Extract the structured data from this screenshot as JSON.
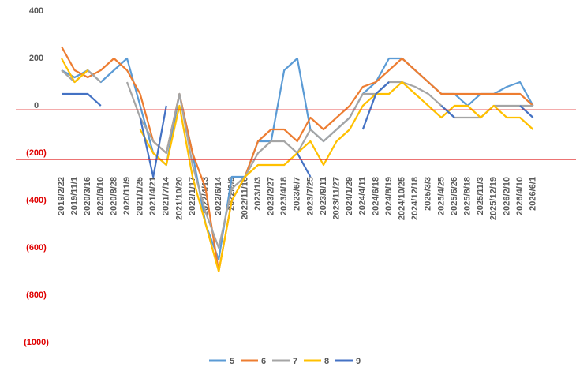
{
  "chart_data": {
    "type": "line",
    "categories": [
      "2019/2/22",
      "2019/11/1",
      "2020/3/16",
      "2020/6/10",
      "2020/8/28",
      "2020/11/9",
      "2021/1/25",
      "2021/4/21",
      "2021/7/14",
      "2021/10/20",
      "2022/1/17",
      "2022/4/13",
      "2022/6/14",
      "2022/9/9",
      "2022/11/16",
      "2023/1/3",
      "2023/2/27",
      "2023/4/18",
      "2023/6/7",
      "2023/7/25",
      "2023/9/11",
      "2023/11/27",
      "2024/1/29",
      "2024/4/11",
      "2024/6/18",
      "2024/8/19",
      "2024/10/25",
      "2024/12/18",
      "2025/3/3",
      "2025/4/25",
      "2025/6/26",
      "2025/8/18",
      "2025/11/3",
      "2025/12/19",
      "2026/2/10",
      "2026/4/10",
      "2026/6/1"
    ],
    "series": [
      {
        "name": "5",
        "color": "#5b9bd5",
        "values": [
          150,
          120,
          150,
          100,
          150,
          200,
          0,
          -200,
          -250,
          50,
          -200,
          -500,
          -650,
          -300,
          -300,
          -150,
          -150,
          150,
          200,
          -100,
          -150,
          -100,
          -50,
          50,
          100,
          200,
          200,
          150,
          100,
          50,
          50,
          0,
          50,
          50,
          80,
          100,
          0
        ]
      },
      {
        "name": "6",
        "color": "#ed7d31",
        "values": [
          250,
          150,
          120,
          150,
          200,
          150,
          50,
          -150,
          -200,
          50,
          -200,
          -350,
          -700,
          -400,
          -300,
          -150,
          -100,
          -100,
          -150,
          -50,
          -100,
          -50,
          0,
          80,
          100,
          150,
          200,
          150,
          100,
          50,
          50,
          50,
          50,
          50,
          50,
          50,
          0
        ]
      },
      {
        "name": "7",
        "color": "#a5a5a5",
        "values": [
          150,
          100,
          150,
          100,
          null,
          100,
          -50,
          -150,
          -200,
          50,
          -250,
          -450,
          -600,
          -350,
          -300,
          -200,
          -150,
          -150,
          -200,
          -100,
          -150,
          -100,
          -50,
          50,
          50,
          100,
          100,
          80,
          50,
          0,
          -50,
          -50,
          -50,
          0,
          0,
          0,
          0
        ]
      },
      {
        "name": "8",
        "color": "#ffc000",
        "values": [
          200,
          100,
          150,
          null,
          null,
          null,
          -100,
          -200,
          -250,
          0,
          -300,
          -500,
          -700,
          -400,
          -300,
          -250,
          -250,
          -250,
          -200,
          -150,
          -250,
          -150,
          -100,
          0,
          50,
          50,
          100,
          50,
          0,
          -50,
          0,
          0,
          -50,
          0,
          -50,
          -50,
          -100
        ]
      },
      {
        "name": "9",
        "color": "#4472c4",
        "values": [
          50,
          50,
          50,
          0,
          null,
          null,
          -50,
          -300,
          0,
          null,
          null,
          null,
          null,
          -550,
          null,
          null,
          null,
          null,
          -200,
          -300,
          null,
          null,
          null,
          -100,
          50,
          100,
          null,
          null,
          null,
          0,
          -50,
          null,
          null,
          null,
          null,
          0,
          -50
        ]
      }
    ],
    "ylim": [
      -1000,
      400
    ],
    "yticks": [
      {
        "value": -1000,
        "label": "(1000)"
      },
      {
        "value": -800,
        "label": "(800)"
      },
      {
        "value": -600,
        "label": "(600)"
      },
      {
        "value": -400,
        "label": "(400)"
      },
      {
        "value": -200,
        "label": "(200)"
      },
      0,
      200,
      400
    ],
    "negative_tick_color": "#e00000",
    "reference_lines": [
      {
        "value": -17,
        "color": "#e02020"
      },
      {
        "value": -227,
        "color": "#e02020"
      }
    ],
    "legend": "bottom"
  }
}
